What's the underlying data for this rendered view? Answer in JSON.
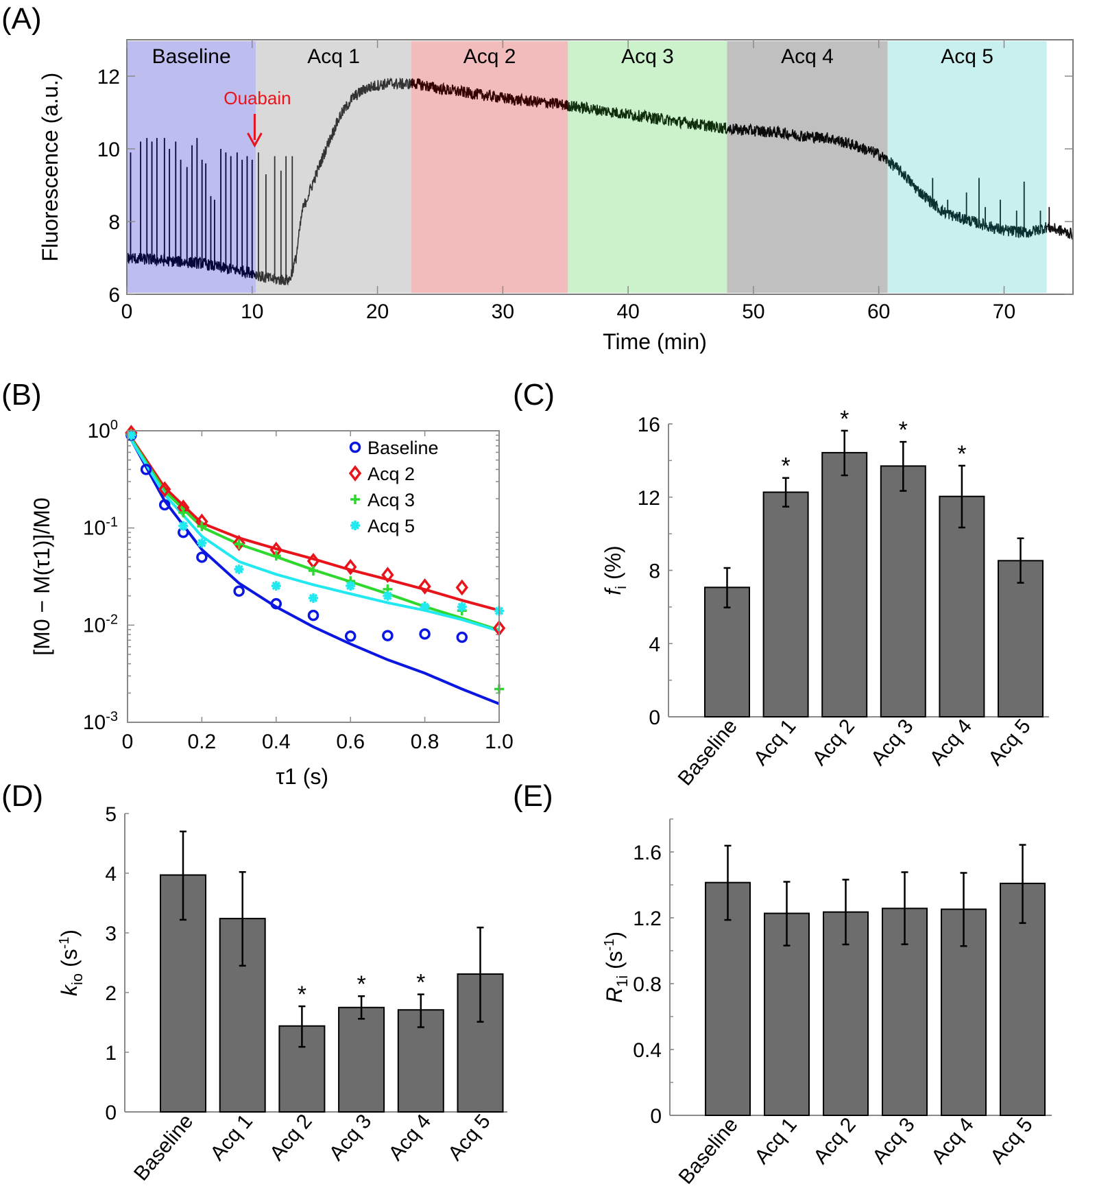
{
  "panels": {
    "A": "(A)",
    "B": "(B)",
    "C": "(C)",
    "D": "(D)",
    "E": "(E)"
  },
  "chart_data": [
    {
      "id": "A",
      "type": "line",
      "title": "",
      "xlabel": "Time (min)",
      "ylabel": "Fluorescence (a.u.)",
      "xlim": [
        0,
        75.5
      ],
      "ylim": [
        6,
        13
      ],
      "xticks": [
        0,
        10,
        20,
        30,
        40,
        50,
        60,
        70
      ],
      "yticks": [
        6,
        8,
        10,
        12
      ],
      "regions": [
        {
          "label": "Baseline",
          "start": 0,
          "end": 10.3,
          "color": "#bdbdf0",
          "trace_color": "#07073a"
        },
        {
          "label": "Acq 1",
          "start": 10.3,
          "end": 22.7,
          "color": "#d9d9d9",
          "trace_color": "#333333"
        },
        {
          "label": "Acq 2",
          "start": 22.7,
          "end": 35.2,
          "color": "#f2bcbc",
          "trace_color": "#340000"
        },
        {
          "label": "Acq 3",
          "start": 35.2,
          "end": 47.9,
          "color": "#ccf2cc",
          "trace_color": "#0e2e0e"
        },
        {
          "label": "Acq 4",
          "start": 47.9,
          "end": 60.7,
          "color": "#c0c0c0",
          "trace_color": "#0a0a0a"
        },
        {
          "label": "Acq 5",
          "start": 60.7,
          "end": 73.4,
          "color": "#c8f0ee",
          "trace_color": "#0b3232"
        }
      ],
      "trace_after_color": "#111111",
      "trace_envelope": {
        "t": [
          0,
          2,
          4,
          6,
          8,
          10,
          11,
          12,
          13,
          13.5,
          14,
          15,
          16,
          17,
          18,
          19,
          20,
          21,
          22,
          23,
          25,
          28,
          31,
          34,
          36,
          39,
          42,
          45,
          48,
          50,
          52,
          54,
          56,
          58,
          60,
          61,
          62,
          63,
          64,
          65,
          66,
          67,
          68,
          70,
          72,
          73.4,
          74,
          75.5
        ],
        "mean": [
          7.0,
          6.95,
          6.9,
          6.85,
          6.7,
          6.6,
          6.45,
          6.4,
          6.4,
          7.0,
          8.3,
          9.2,
          10.1,
          10.9,
          11.4,
          11.65,
          11.75,
          11.8,
          11.78,
          11.8,
          11.65,
          11.5,
          11.35,
          11.25,
          11.15,
          11.0,
          10.85,
          10.7,
          10.55,
          10.5,
          10.45,
          10.35,
          10.3,
          10.1,
          9.85,
          9.6,
          9.3,
          8.9,
          8.6,
          8.3,
          8.15,
          8.05,
          7.95,
          7.75,
          7.7,
          7.85,
          7.8,
          7.65
        ]
      },
      "spikes": {
        "t": [
          0.3,
          1.1,
          1.6,
          2.0,
          2.4,
          3.0,
          3.4,
          3.9,
          4.3,
          4.8,
          5.2,
          5.6,
          6.0,
          6.3,
          6.7,
          7.0,
          7.5,
          7.9,
          8.3,
          8.8,
          9.2,
          9.6,
          10.0,
          10.5,
          11.1,
          11.8,
          12.3,
          12.7,
          13.2,
          64.3,
          65.5,
          67.0,
          68.0,
          68.5,
          69.7,
          71.0,
          71.6,
          72.9,
          73.6
        ],
        "peak": [
          9.9,
          10.2,
          10.3,
          10.2,
          10.3,
          10.3,
          10.0,
          10.2,
          9.7,
          9.5,
          10.1,
          10.3,
          9.7,
          9.6,
          8.7,
          8.6,
          10.0,
          9.9,
          9.8,
          9.9,
          9.7,
          9.8,
          9.7,
          9.9,
          9.3,
          9.8,
          9.4,
          9.8,
          9.8,
          9.2,
          8.6,
          8.8,
          9.2,
          8.4,
          8.6,
          8.3,
          9.1,
          8.3,
          8.4
        ]
      },
      "annotation": {
        "text": "Ouabain",
        "x": 10.2,
        "color": "#e8141c"
      }
    },
    {
      "id": "B",
      "type": "scatter",
      "title": "",
      "xlabel": "τ1 (s)",
      "ylabel": "[M0 − M(τ1)]/M0",
      "yscale": "log",
      "xlim": [
        0,
        1.0
      ],
      "ylim": [
        0.001,
        1
      ],
      "xticks": [
        "0",
        "0.2",
        "0.4",
        "0.6",
        "0.8",
        "1.0"
      ],
      "xtick_values": [
        0,
        0.2,
        0.4,
        0.6,
        0.8,
        1.0
      ],
      "yticks": [
        1,
        0.1,
        0.01,
        0.001
      ],
      "ytick_labels": [
        {
          "base": "10",
          "exp": "0"
        },
        {
          "base": "10",
          "exp": "-1"
        },
        {
          "base": "10",
          "exp": "-2"
        },
        {
          "base": "10",
          "exp": "-3"
        }
      ],
      "legend_position": "top-right",
      "series": [
        {
          "name": "Baseline",
          "marker": "circle",
          "color": "#0b17e0",
          "points_x": [
            0.01,
            0.05,
            0.1,
            0.15,
            0.2,
            0.3,
            0.4,
            0.5,
            0.6,
            0.7,
            0.8,
            0.9
          ],
          "points_y": [
            0.9,
            0.4,
            0.173,
            0.09,
            0.05,
            0.0224,
            0.0166,
            0.0126,
            0.0077,
            0.0078,
            0.0081,
            0.0075
          ],
          "fit_x": [
            0,
            0.1,
            0.2,
            0.3,
            0.4,
            0.5,
            0.6,
            0.7,
            0.8,
            0.9,
            1.0
          ],
          "fit_y": [
            0.95,
            0.19,
            0.06,
            0.027,
            0.0154,
            0.0096,
            0.0064,
            0.0044,
            0.0032,
            0.0022,
            0.00155
          ]
        },
        {
          "name": "Acq 2",
          "marker": "diamond",
          "color": "#e8141c",
          "points_x": [
            0.01,
            0.1,
            0.15,
            0.2,
            0.3,
            0.4,
            0.5,
            0.6,
            0.7,
            0.8,
            0.9,
            1.0
          ],
          "points_y": [
            0.95,
            0.25,
            0.162,
            0.116,
            0.07,
            0.0595,
            0.0457,
            0.0396,
            0.0329,
            0.025,
            0.0244,
            0.0093
          ],
          "fit_x": [
            0,
            0.1,
            0.2,
            0.3,
            0.4,
            0.5,
            0.6,
            0.7,
            0.8,
            0.9,
            1.0
          ],
          "fit_y": [
            0.97,
            0.26,
            0.112,
            0.079,
            0.061,
            0.048,
            0.037,
            0.0295,
            0.0233,
            0.018,
            0.0142
          ]
        },
        {
          "name": "Acq 3",
          "marker": "plus",
          "color": "#2fd82f",
          "points_x": [
            0.01,
            0.15,
            0.2,
            0.3,
            0.4,
            0.5,
            0.6,
            0.7,
            0.8,
            0.9,
            1.0
          ],
          "points_y": [
            0.92,
            0.144,
            0.104,
            0.068,
            0.0517,
            0.0363,
            0.0284,
            0.0234,
            0.0156,
            0.0141,
            0.0022
          ],
          "fit_x": [
            0,
            0.1,
            0.2,
            0.3,
            0.4,
            0.5,
            0.6,
            0.7,
            0.8,
            0.9,
            1.0
          ],
          "fit_y": [
            0.95,
            0.24,
            0.102,
            0.068,
            0.0505,
            0.037,
            0.028,
            0.021,
            0.0155,
            0.0118,
            0.0089
          ]
        },
        {
          "name": "Acq 5",
          "marker": "asterisk",
          "color": "#22e8f0",
          "points_x": [
            0.01,
            0.15,
            0.2,
            0.3,
            0.4,
            0.5,
            0.6,
            0.7,
            0.8,
            0.9,
            1.0
          ],
          "points_y": [
            0.9,
            0.105,
            0.07,
            0.0376,
            0.0254,
            0.019,
            0.0254,
            0.02,
            0.0154,
            0.0154,
            0.014
          ],
          "fit_x": [
            0,
            0.1,
            0.15,
            0.2,
            0.3,
            0.4,
            0.5,
            0.6,
            0.7,
            0.8,
            0.9,
            1.0
          ],
          "fit_y": [
            0.93,
            0.22,
            0.135,
            0.082,
            0.045,
            0.0333,
            0.026,
            0.021,
            0.017,
            0.0142,
            0.0114,
            0.0087
          ]
        }
      ]
    },
    {
      "id": "C",
      "type": "bar",
      "title": "",
      "xlabel": "",
      "ylabel": "fi (%)",
      "ylabel_main": "f",
      "ylabel_sub": "i",
      "ylabel_rest": " (%)",
      "categories": [
        "Baseline",
        "Acq 1",
        "Acq 2",
        "Acq 3",
        "Acq 4",
        "Acq 5"
      ],
      "values": [
        7.07,
        12.27,
        14.43,
        13.7,
        12.04,
        8.53
      ],
      "err_low": [
        5.97,
        11.48,
        13.19,
        12.34,
        10.34,
        7.32
      ],
      "err_high": [
        8.13,
        13.05,
        15.63,
        15.02,
        13.72,
        9.75
      ],
      "significant": [
        false,
        true,
        true,
        true,
        true,
        false
      ],
      "ylim": [
        0,
        16
      ],
      "yticks": [
        0,
        4,
        8,
        12,
        16
      ],
      "minor_step": 2
    },
    {
      "id": "D",
      "type": "bar",
      "title": "",
      "xlabel": "",
      "ylabel": "kio (s-1)",
      "ylabel_main": "k",
      "ylabel_sub": "io",
      "ylabel_rest": " (s",
      "ylabel_sup": "-1",
      "ylabel_close": ")",
      "categories": [
        "Baseline",
        "Acq 1",
        "Acq 2",
        "Acq 3",
        "Acq 4",
        "Acq 5"
      ],
      "values": [
        3.97,
        3.24,
        1.44,
        1.75,
        1.71,
        2.31
      ],
      "err_low": [
        3.22,
        2.45,
        1.09,
        1.56,
        1.42,
        1.51
      ],
      "err_high": [
        4.7,
        4.02,
        1.77,
        1.94,
        1.97,
        3.09
      ],
      "significant": [
        false,
        false,
        true,
        true,
        true,
        false
      ],
      "ylim": [
        0,
        5
      ],
      "yticks": [
        0,
        1,
        2,
        3,
        4,
        5
      ],
      "minor_step": 0
    },
    {
      "id": "E",
      "type": "bar",
      "title": "",
      "xlabel": "",
      "ylabel": "R1i (s-1)",
      "ylabel_main": "R",
      "ylabel_sub": "1i",
      "ylabel_rest": " (s",
      "ylabel_sup": "-1",
      "ylabel_close": ")",
      "categories": [
        "Baseline",
        "Acq 1",
        "Acq 2",
        "Acq 3",
        "Acq 4",
        "Acq 5"
      ],
      "values": [
        1.414,
        1.227,
        1.235,
        1.257,
        1.252,
        1.409
      ],
      "err_low": [
        1.187,
        1.031,
        1.038,
        1.039,
        1.028,
        1.168
      ],
      "err_high": [
        1.638,
        1.419,
        1.432,
        1.477,
        1.473,
        1.643
      ],
      "significant": [
        false,
        false,
        false,
        false,
        false,
        false
      ],
      "ylim": [
        0,
        1.8
      ],
      "yticks": [
        0,
        0.4,
        0.8,
        1.2,
        1.6
      ],
      "ytick_labels": [
        "0",
        "0.4",
        "0.8",
        "1.2",
        "1.6"
      ],
      "minor_step": 0.2
    }
  ],
  "significance_marker": "*"
}
